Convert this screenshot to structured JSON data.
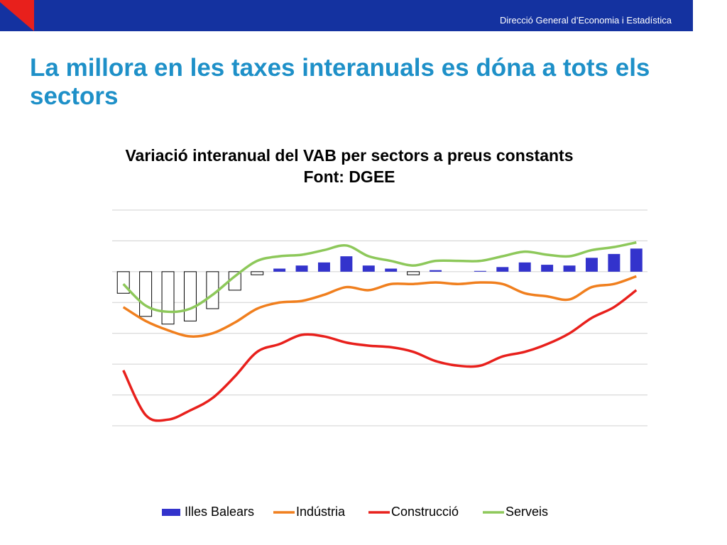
{
  "header": "Direcció General d’Economia i Estadística",
  "title": "La millora en les taxes interanuals es dóna a tots els sectors",
  "chart_data": {
    "type": "bar_line",
    "title": "Variació interanual del VAB per  sectors a preus constants",
    "subtitle": "Font: DGEE",
    "categories": [
      null,
      null,
      null,
      null,
      null,
      null,
      null,
      null,
      null,
      null,
      null,
      null,
      null,
      null,
      null,
      null,
      null,
      null,
      null,
      null,
      null,
      null,
      null,
      null
    ],
    "ylim": [
      -10,
      4
    ],
    "yticks": [
      -10,
      -8,
      -6,
      -4,
      -2,
      0,
      2,
      4
    ],
    "grid": true,
    "invert_if_negative": true,
    "legend": "bottom",
    "series": [
      {
        "name": "Illes Balears",
        "type": "bar",
        "color": "#3333cc",
        "values": [
          -1.4,
          -2.9,
          -3.4,
          -3.2,
          -2.4,
          -1.2,
          -0.2,
          0.2,
          0.4,
          0.6,
          1.0,
          0.4,
          0.2,
          -0.2,
          0.1,
          0,
          0.05,
          0.3,
          0.6,
          0.45,
          0.4,
          0.9,
          1.15,
          1.5
        ]
      },
      {
        "name": "Indústria",
        "type": "line",
        "color": "#f07f1e",
        "values": [
          -2.3,
          -3.2,
          -3.8,
          -4.2,
          -4.0,
          -3.3,
          -2.4,
          -2.0,
          -1.9,
          -1.5,
          -1.0,
          -1.2,
          -0.8,
          -0.8,
          -0.7,
          -0.8,
          -0.7,
          -0.8,
          -1.4,
          -1.6,
          -1.8,
          -1.0,
          -0.8,
          -0.3
        ]
      },
      {
        "name": "Construcció",
        "type": "line",
        "color": "#e8201c",
        "values": [
          -6.4,
          -9.3,
          -9.6,
          -9.0,
          -8.2,
          -6.8,
          -5.2,
          -4.7,
          -4.1,
          -4.2,
          -4.6,
          -4.8,
          -4.9,
          -5.2,
          -5.8,
          -6.1,
          -6.1,
          -5.5,
          -5.2,
          -4.7,
          -4.0,
          -3.0,
          -2.3,
          -1.2
        ]
      },
      {
        "name": "Serveis",
        "type": "line",
        "color": "#8dc85a",
        "values": [
          -0.8,
          -2.2,
          -2.6,
          -2.4,
          -1.5,
          -0.3,
          0.7,
          1.0,
          1.1,
          1.4,
          1.7,
          1.0,
          0.7,
          0.4,
          0.7,
          0.7,
          0.7,
          1.0,
          1.3,
          1.1,
          1.0,
          1.4,
          1.6,
          1.9
        ]
      }
    ]
  }
}
